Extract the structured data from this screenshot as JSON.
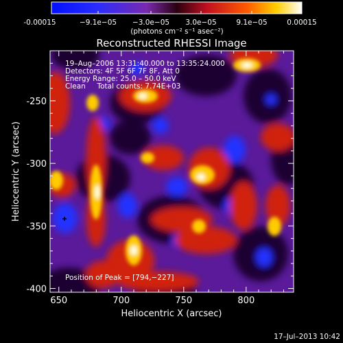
{
  "colorbar": {
    "tick_labels": [
      "-0.00015",
      "−9.1e−05",
      "−3.0e−05",
      "3.0e−05",
      "9.1e−05",
      "0.00015"
    ],
    "unit_label": "(photons cm⁻² s⁻¹ asec⁻²)"
  },
  "plot": {
    "title": "Reconstructed RHESSI Image",
    "xlabel": "Heliocentric X (arcsec)",
    "ylabel": "Heliocentric Y (arcsec)",
    "xticks": [
      650,
      700,
      750,
      800
    ],
    "yticks": [
      -250,
      -300,
      -350,
      -400
    ],
    "xlim": [
      643,
      838
    ],
    "ylim": [
      -403,
      -210
    ]
  },
  "annotation": {
    "line1": "19–Aug–2006 13:31:40.000 to 13:35:24.000",
    "line2": "Detectors: 4F 5F 6F 7F 8F, Att 0",
    "line3": "Energy Range: 25.0 – 50.0 keV",
    "line4": "Clean     Total counts: 7.74E+03",
    "peak": "Position of Peak = [794,−227]"
  },
  "footer": {
    "timestamp": "17–Jul–2013 10:42"
  }
}
